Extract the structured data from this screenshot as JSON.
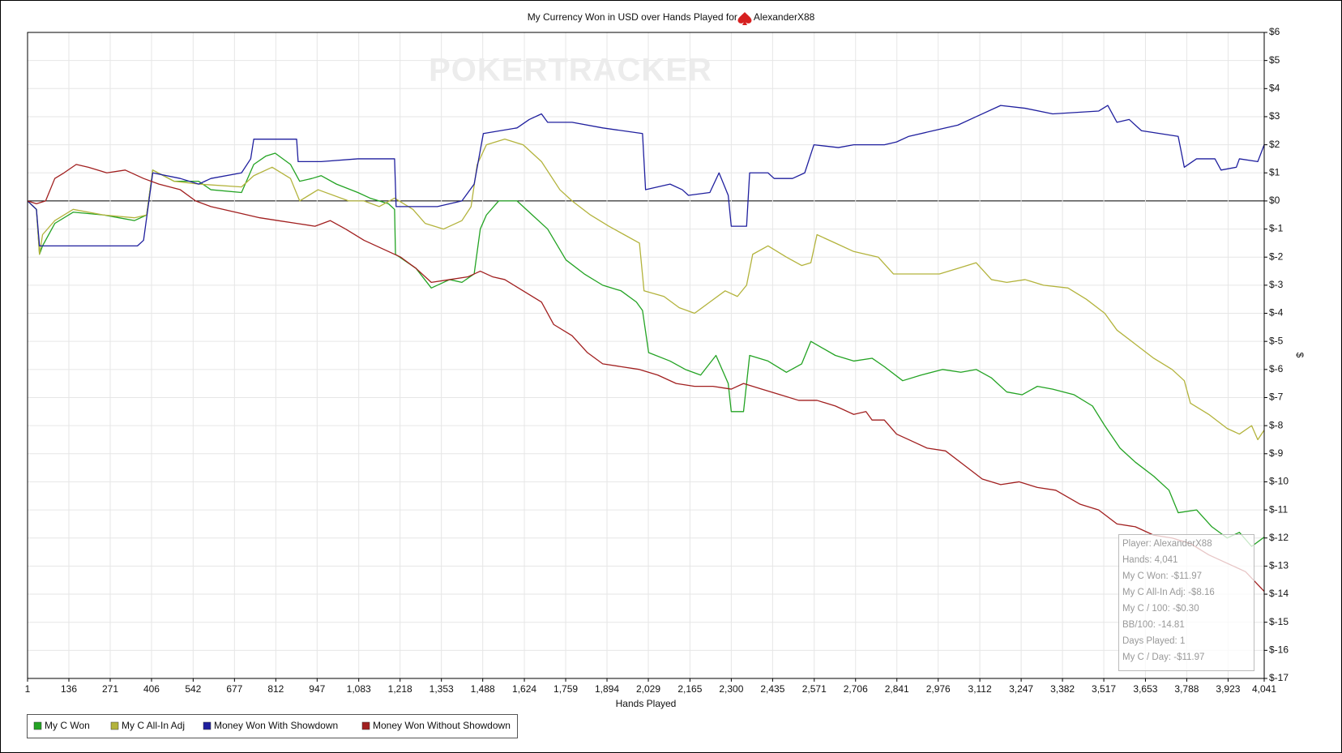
{
  "chart_data": {
    "type": "line",
    "title": "My Currency Won in USD over Hands Played for",
    "player": "AlexanderX88",
    "watermark": "POKERTRACKER",
    "xlabel": "Hands Played",
    "ylabel": "$",
    "grid": true,
    "xlim": [
      1,
      4041
    ],
    "ylim": [
      -17,
      6
    ],
    "xticks": [
      1,
      136,
      271,
      406,
      542,
      677,
      812,
      947,
      {
        "value": 1083,
        "label": "1,083"
      },
      {
        "value": 1218,
        "label": "1,218"
      },
      {
        "value": 1353,
        "label": "1,353"
      },
      {
        "value": 1488,
        "label": "1,488"
      },
      {
        "value": 1624,
        "label": "1,624"
      },
      {
        "value": 1759,
        "label": "1,759"
      },
      {
        "value": 1894,
        "label": "1,894"
      },
      {
        "value": 2029,
        "label": "2,029"
      },
      {
        "value": 2165,
        "label": "2,165"
      },
      {
        "value": 2300,
        "label": "2,300"
      },
      {
        "value": 2435,
        "label": "2,435"
      },
      {
        "value": 2571,
        "label": "2,571"
      },
      {
        "value": 2706,
        "label": "2,706"
      },
      {
        "value": 2841,
        "label": "2,841"
      },
      {
        "value": 2976,
        "label": "2,976"
      },
      {
        "value": 3112,
        "label": "3,112"
      },
      {
        "value": 3247,
        "label": "3,247"
      },
      {
        "value": 3382,
        "label": "3,382"
      },
      {
        "value": 3517,
        "label": "3,517"
      },
      {
        "value": 3653,
        "label": "3,653"
      },
      {
        "value": 3788,
        "label": "3,788"
      },
      {
        "value": 3923,
        "label": "3,923"
      },
      {
        "value": 4041,
        "label": "4,041"
      }
    ],
    "yticks": [
      {
        "value": 6,
        "label": "$6"
      },
      {
        "value": 5,
        "label": "$5"
      },
      {
        "value": 4,
        "label": "$4"
      },
      {
        "value": 3,
        "label": "$3"
      },
      {
        "value": 2,
        "label": "$2"
      },
      {
        "value": 1,
        "label": "$1"
      },
      {
        "value": 0,
        "label": "$0"
      },
      {
        "value": -1,
        "label": "$-1"
      },
      {
        "value": -2,
        "label": "$-2"
      },
      {
        "value": -3,
        "label": "$-3"
      },
      {
        "value": -4,
        "label": "$-4"
      },
      {
        "value": -5,
        "label": "$-5"
      },
      {
        "value": -6,
        "label": "$-6"
      },
      {
        "value": -7,
        "label": "$-7"
      },
      {
        "value": -8,
        "label": "$-8"
      },
      {
        "value": -9,
        "label": "$-9"
      },
      {
        "value": -10,
        "label": "$-10"
      },
      {
        "value": -11,
        "label": "$-11"
      },
      {
        "value": -12,
        "label": "$-12"
      },
      {
        "value": -13,
        "label": "$-13"
      },
      {
        "value": -14,
        "label": "$-14"
      },
      {
        "value": -15,
        "label": "$-15"
      },
      {
        "value": -16,
        "label": "$-16"
      },
      {
        "value": -17,
        "label": "$-17"
      }
    ],
    "series": [
      {
        "name": "My C Won",
        "color": "#23a323",
        "x": [
          1,
          30,
          40,
          50,
          90,
          150,
          250,
          300,
          350,
          390,
          410,
          480,
          560,
          600,
          700,
          740,
          780,
          810,
          860,
          890,
          930,
          960,
          1010,
          1080,
          1120,
          1180,
          1200,
          1203,
          1270,
          1320,
          1380,
          1420,
          1460,
          1480,
          1500,
          1540,
          1600,
          1650,
          1700,
          1760,
          1820,
          1880,
          1940,
          1990,
          2010,
          2030,
          2100,
          2150,
          2200,
          2250,
          2290,
          2300,
          2340,
          2360,
          2420,
          2480,
          2530,
          2560,
          2640,
          2700,
          2760,
          2800,
          2860,
          2920,
          2990,
          3050,
          3100,
          3150,
          3200,
          3250,
          3300,
          3350,
          3420,
          3480,
          3520,
          3570,
          3620,
          3680,
          3730,
          3760,
          3820,
          3870,
          3920,
          3960,
          4000,
          4041
        ],
        "values": [
          0,
          -0.3,
          -1.9,
          -1.6,
          -0.8,
          -0.4,
          -0.5,
          -0.6,
          -0.7,
          -0.5,
          1.1,
          0.7,
          0.7,
          0.4,
          0.3,
          1.3,
          1.6,
          1.7,
          1.3,
          0.7,
          0.8,
          0.9,
          0.6,
          0.3,
          0.1,
          -0.1,
          -0.3,
          -1.9,
          -2.4,
          -3.1,
          -2.8,
          -2.9,
          -2.6,
          -1.0,
          -0.5,
          0.0,
          0.0,
          -0.5,
          -1.0,
          -2.1,
          -2.6,
          -3.0,
          -3.2,
          -3.6,
          -3.9,
          -5.4,
          -5.7,
          -6.0,
          -6.2,
          -5.5,
          -6.5,
          -7.5,
          -7.5,
          -5.5,
          -5.7,
          -6.1,
          -5.8,
          -5.0,
          -5.5,
          -5.7,
          -5.6,
          -5.9,
          -6.4,
          -6.2,
          -6.0,
          -6.1,
          -6.0,
          -6.3,
          -6.8,
          -6.9,
          -6.6,
          -6.7,
          -6.9,
          -7.3,
          -8.0,
          -8.8,
          -9.3,
          -9.8,
          -10.3,
          -11.1,
          -11.0,
          -11.6,
          -12.0,
          -11.8,
          -12.3,
          -11.97
        ]
      },
      {
        "name": "My C All-In Adj",
        "color": "#b3b33c",
        "x": [
          1,
          30,
          40,
          50,
          90,
          150,
          250,
          350,
          390,
          410,
          480,
          560,
          700,
          740,
          800,
          860,
          890,
          950,
          1050,
          1100,
          1150,
          1200,
          1260,
          1300,
          1360,
          1420,
          1450,
          1470,
          1500,
          1560,
          1620,
          1680,
          1740,
          1780,
          1840,
          1900,
          1950,
          2000,
          2015,
          2080,
          2130,
          2180,
          2230,
          2280,
          2320,
          2350,
          2370,
          2420,
          2480,
          2530,
          2560,
          2580,
          2640,
          2700,
          2780,
          2830,
          2900,
          2980,
          3040,
          3100,
          3150,
          3200,
          3260,
          3320,
          3400,
          3460,
          3520,
          3560,
          3620,
          3680,
          3740,
          3780,
          3800,
          3860,
          3920,
          3960,
          4000,
          4020,
          4041
        ],
        "values": [
          0,
          -0.3,
          -1.9,
          -1.2,
          -0.7,
          -0.3,
          -0.5,
          -0.6,
          -0.5,
          1.1,
          0.7,
          0.6,
          0.5,
          0.9,
          1.2,
          0.8,
          0.0,
          0.4,
          0.0,
          0.0,
          -0.2,
          0.1,
          -0.3,
          -0.8,
          -1.0,
          -0.7,
          -0.2,
          1.3,
          2.0,
          2.2,
          2.0,
          1.4,
          0.4,
          0.0,
          -0.5,
          -0.9,
          -1.2,
          -1.5,
          -3.2,
          -3.4,
          -3.8,
          -4.0,
          -3.6,
          -3.2,
          -3.4,
          -3.0,
          -1.9,
          -1.6,
          -2.0,
          -2.3,
          -2.2,
          -1.2,
          -1.5,
          -1.8,
          -2.0,
          -2.6,
          -2.6,
          -2.6,
          -2.4,
          -2.2,
          -2.8,
          -2.9,
          -2.8,
          -3.0,
          -3.1,
          -3.5,
          -4.0,
          -4.6,
          -5.1,
          -5.6,
          -6.0,
          -6.4,
          -7.2,
          -7.6,
          -8.1,
          -8.3,
          -8.0,
          -8.5,
          -8.16
        ]
      },
      {
        "name": "Money Won With Showdown",
        "color": "#1f1f9e",
        "x": [
          1,
          30,
          40,
          100,
          360,
          380,
          410,
          500,
          560,
          600,
          700,
          730,
          740,
          880,
          885,
          960,
          1080,
          1200,
          1205,
          1340,
          1420,
          1460,
          1490,
          1600,
          1640,
          1680,
          1700,
          1780,
          1880,
          2010,
          2020,
          2100,
          2140,
          2160,
          2230,
          2260,
          2290,
          2300,
          2350,
          2360,
          2420,
          2440,
          2500,
          2540,
          2570,
          2650,
          2700,
          2800,
          2840,
          2880,
          2960,
          3040,
          3100,
          3180,
          3260,
          3350,
          3500,
          3530,
          3560,
          3600,
          3640,
          3700,
          3760,
          3780,
          3820,
          3880,
          3900,
          3950,
          3960,
          4020,
          4041
        ],
        "values": [
          0,
          -0.3,
          -1.6,
          -1.6,
          -1.6,
          -1.4,
          1.0,
          0.8,
          0.6,
          0.8,
          1.0,
          1.5,
          2.2,
          2.2,
          1.4,
          1.4,
          1.5,
          1.5,
          -0.2,
          -0.2,
          0.0,
          0.6,
          2.4,
          2.6,
          2.9,
          3.1,
          2.8,
          2.8,
          2.6,
          2.4,
          0.4,
          0.6,
          0.4,
          0.2,
          0.3,
          1.0,
          0.2,
          -0.9,
          -0.9,
          1.0,
          1.0,
          0.8,
          0.8,
          1.0,
          2.0,
          1.9,
          2.0,
          2.0,
          2.1,
          2.3,
          2.5,
          2.7,
          3.0,
          3.4,
          3.3,
          3.1,
          3.2,
          3.4,
          2.8,
          2.9,
          2.5,
          2.4,
          2.3,
          1.2,
          1.5,
          1.5,
          1.1,
          1.2,
          1.5,
          1.4,
          2.0
        ]
      },
      {
        "name": "Money Won Without Showdown",
        "color": "#a11f1f",
        "x": [
          1,
          30,
          60,
          90,
          120,
          160,
          200,
          260,
          320,
          380,
          430,
          500,
          550,
          600,
          680,
          760,
          820,
          880,
          940,
          990,
          1040,
          1100,
          1160,
          1220,
          1270,
          1320,
          1380,
          1440,
          1480,
          1520,
          1560,
          1620,
          1680,
          1720,
          1780,
          1830,
          1880,
          1940,
          2000,
          2060,
          2120,
          2180,
          2240,
          2300,
          2340,
          2400,
          2460,
          2520,
          2580,
          2640,
          2700,
          2740,
          2760,
          2800,
          2840,
          2880,
          2940,
          3000,
          3060,
          3120,
          3180,
          3240,
          3300,
          3360,
          3440,
          3500,
          3560,
          3620,
          3680,
          3740,
          3800,
          3860,
          3920,
          3980,
          4041
        ],
        "values": [
          0,
          -0.1,
          0.0,
          0.8,
          1.0,
          1.3,
          1.2,
          1.0,
          1.1,
          0.8,
          0.6,
          0.4,
          0.0,
          -0.2,
          -0.4,
          -0.6,
          -0.7,
          -0.8,
          -0.9,
          -0.7,
          -1.0,
          -1.4,
          -1.7,
          -2.0,
          -2.4,
          -2.9,
          -2.8,
          -2.7,
          -2.5,
          -2.7,
          -2.8,
          -3.2,
          -3.6,
          -4.4,
          -4.8,
          -5.4,
          -5.8,
          -5.9,
          -6.0,
          -6.2,
          -6.5,
          -6.6,
          -6.6,
          -6.7,
          -6.5,
          -6.7,
          -6.9,
          -7.1,
          -7.1,
          -7.3,
          -7.6,
          -7.5,
          -7.8,
          -7.8,
          -8.3,
          -8.5,
          -8.8,
          -8.9,
          -9.4,
          -9.9,
          -10.1,
          -10.0,
          -10.2,
          -10.3,
          -10.8,
          -11.0,
          -11.5,
          -11.6,
          -11.9,
          -12.0,
          -12.2,
          -12.6,
          -12.9,
          -13.2,
          -13.9
        ]
      }
    ],
    "tooltip": [
      "Player: AlexanderX88",
      "Hands: 4,041",
      "My C Won: -$11.97",
      "My C All-In Adj: -$8.16",
      "My C / 100: -$0.30",
      "BB/100: -14.81",
      "Days Played: 1",
      "My C / Day: -$11.97"
    ]
  }
}
